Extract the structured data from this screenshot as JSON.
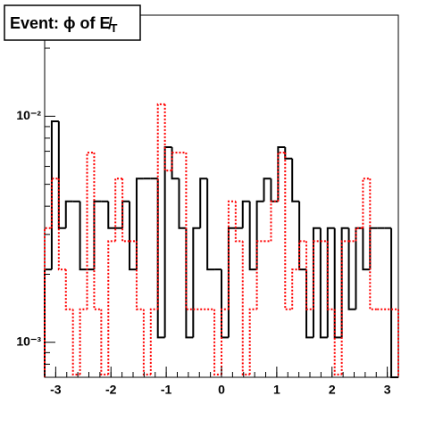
{
  "chart_data": {
    "type": "histogram",
    "title": "Event: ϕ of E̸",
    "title_subscript": "T",
    "bins": [
      -3.2,
      -3.072,
      -2.944,
      -2.816,
      -2.688,
      -2.56,
      -2.432,
      -2.304,
      -2.176,
      -2.048,
      -1.92,
      -1.792,
      -1.664,
      -1.536,
      -1.408,
      -1.28,
      -1.152,
      -1.024,
      -0.896,
      -0.768,
      -0.64,
      -0.512,
      -0.384,
      -0.256,
      -0.128,
      0,
      0.128,
      0.256,
      0.384,
      0.512,
      0.64,
      0.768,
      0.896,
      1.024,
      1.152,
      1.28,
      1.408,
      1.536,
      1.664,
      1.792,
      1.92,
      2.048,
      2.176,
      2.304,
      2.432,
      2.56,
      2.688,
      2.816,
      2.944,
      3.072,
      3.2
    ],
    "series": [
      {
        "color": "#000000",
        "style": "solid",
        "values": [
          0.0021,
          0.0095,
          0.0032,
          0.0042,
          0.0042,
          0.0021,
          0.0021,
          0.0042,
          0.0042,
          0.0032,
          0.0032,
          0.0042,
          0.0021,
          0.0053,
          0.0053,
          0.0053,
          0.00105,
          0.0073,
          0.0053,
          0.0032,
          0.00105,
          0.0032,
          0.0053,
          0.0021,
          0.0021,
          0.00105,
          0.0032,
          0.0032,
          0.0042,
          0.0021,
          0.0042,
          0.0053,
          0.0042,
          0.0073,
          0.0065,
          0.0042,
          0.0021,
          0.00105,
          0.0032,
          0.00105,
          0.0032,
          0.00105,
          0.0032,
          0.0014,
          0.0032,
          0.0021,
          0.0032,
          0.0032,
          0.0032,
          0.0007
        ]
      },
      {
        "color": "#ff0000",
        "style": "dotted",
        "values": [
          0.0032,
          0.0053,
          0.0021,
          0.0014,
          0.00072,
          0.0014,
          0.0069,
          0.0014,
          0.00072,
          0.0028,
          0.0053,
          0.0028,
          0.0028,
          0.0014,
          0.00072,
          0.0014,
          0.0113,
          0.00575,
          0.0069,
          0.0069,
          0.0014,
          0.0014,
          0.0014,
          0.0014,
          0.00072,
          0.0014,
          0.0042,
          0.0028,
          0.00072,
          0.0014,
          0.0028,
          0.0028,
          0.0042,
          0.0069,
          0.0014,
          0.0021,
          0.0028,
          0.0014,
          0.0028,
          0.0028,
          0.0014,
          0.00072,
          0.0028,
          0.0028,
          0.0032,
          0.0053,
          0.0014,
          0.0014,
          0.0014,
          0.0014
        ]
      }
    ],
    "xlim": [
      -3.2,
      3.2
    ],
    "xticks": [
      -3,
      -2,
      -1,
      0,
      1,
      2,
      3
    ],
    "ylim": [
      0.0007,
      0.028
    ],
    "log_y": true,
    "yticks": [
      {
        "value": 0.001,
        "label": "10⁻³"
      },
      {
        "value": 0.01,
        "label": "10⁻²"
      }
    ],
    "yminor_ticks": [
      0.0008,
      0.0009,
      0.002,
      0.003,
      0.004,
      0.005,
      0.006,
      0.007,
      0.008,
      0.009,
      0.02
    ]
  }
}
